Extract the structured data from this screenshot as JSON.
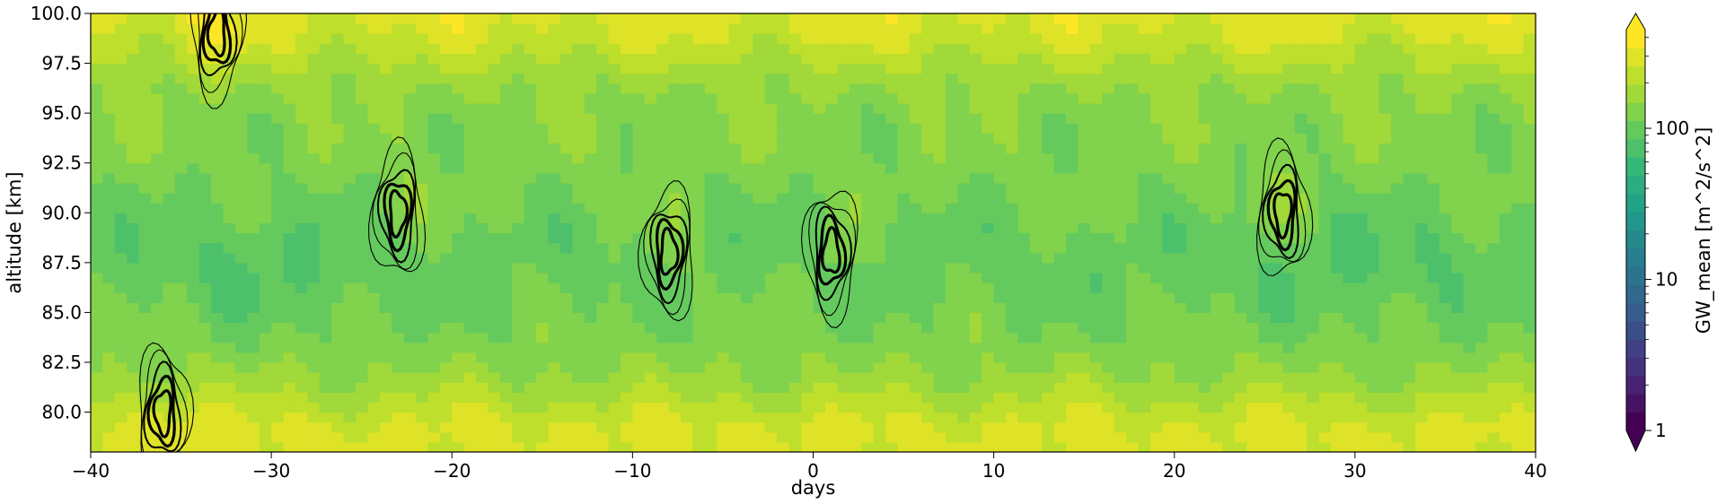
{
  "chart_data": {
    "type": "heatmap",
    "subtype": "filled contour with overlaid line contours",
    "xlabel": "days",
    "ylabel": "altitude [km]",
    "xlim": [
      -40,
      40
    ],
    "ylim": [
      78,
      100
    ],
    "xticks": [
      -40,
      -30,
      -20,
      -10,
      0,
      10,
      20,
      30,
      40
    ],
    "xtick_labels": [
      "−40",
      "−30",
      "−20",
      "−10",
      "0",
      "10",
      "20",
      "30",
      "40"
    ],
    "yticks": [
      80.0,
      82.5,
      85.0,
      87.5,
      90.0,
      92.5,
      95.0,
      97.5,
      100.0
    ],
    "ytick_labels": [
      "80.0",
      "82.5",
      "85.0",
      "87.5",
      "90.0",
      "92.5",
      "95.0",
      "97.5",
      "100.0"
    ],
    "grid": false,
    "colorbar": {
      "label": "GW_mean [m^2/s^2]",
      "scale": "log",
      "range": [
        1,
        450
      ],
      "extend": "both",
      "colormap": "viridis",
      "ticks": [
        1,
        10,
        100
      ],
      "tick_labels": [
        "1",
        "10",
        "100"
      ]
    },
    "field_summary": {
      "value_range_shown": [
        60,
        400
      ],
      "typical_value": 150,
      "higher_values": "near altitude edges (78-80 km and 97-100 km) and near day -8",
      "lower_values": "mid altitudes (84-90 km), especially days -35 to -25 and 25 to 35"
    },
    "contour_hotspots": [
      {
        "x": -8,
        "y": 88
      },
      {
        "x": -23,
        "y": 90
      },
      {
        "x": 26,
        "y": 90
      },
      {
        "x": -36,
        "y": 80
      },
      {
        "x": -33,
        "y": 99
      },
      {
        "x": 1,
        "y": 88
      }
    ]
  }
}
